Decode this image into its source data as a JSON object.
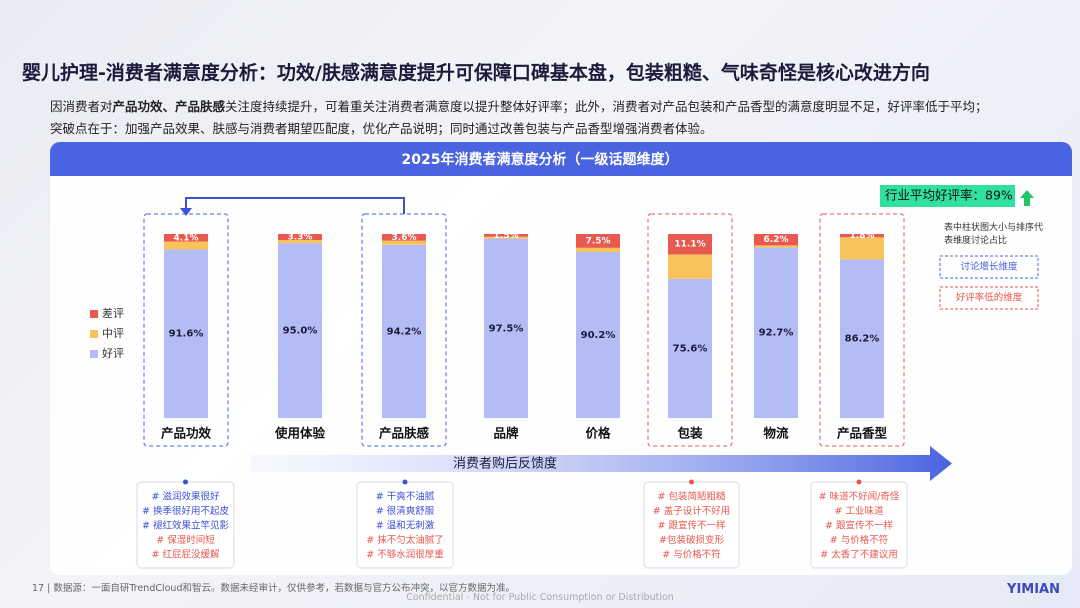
{
  "header": {
    "title": "婴儿护理-消费者满意度分析：功效/肤感满意度提升可保障口碑基本盘，包装粗糙、气味奇怪是核心改进方向",
    "intro_line1": [
      {
        "text": "因消费者对"
      },
      {
        "text": "产品功效、产品肤感",
        "bold": true
      },
      {
        "text": "关注度持续提升，可着重关注消费者满意度以提升整体好评率；此外，消费者对产品包装和产品香型的满意度明显不足，好评率低于平均；"
      }
    ],
    "intro_line2": "突破点在于：加强产品效果、肤感与消费者期望匹配度，优化产品说明；同时通过改善包装与产品香型增强消费者体验。"
  },
  "chart_data": {
    "type": "stacked_bar",
    "title": "2025年消费者满意度分析（一级话题维度）",
    "categories": [
      "产品功效",
      "使用体验",
      "产品肤感",
      "品牌",
      "价格",
      "包装",
      "物流",
      "产品香型"
    ],
    "series": [
      {
        "name": "好评",
        "color": "#b4bcf5",
        "values": [
          91.6,
          95.0,
          94.2,
          97.5,
          90.2,
          75.6,
          92.7,
          86.2
        ],
        "value_labels": [
          "91.6%",
          "95.0%",
          "94.2%",
          "97.5%",
          "90.2%",
          "75.6%",
          "92.7%",
          "86.2%"
        ]
      },
      {
        "name": "中评",
        "color": "#f9c35c",
        "values": [
          4.3,
          1.7,
          2.2,
          1.0,
          2.3,
          13.3,
          1.1,
          12.0
        ]
      },
      {
        "name": "差评",
        "color": "#e85a4f",
        "values": [
          4.1,
          3.3,
          3.6,
          1.5,
          7.5,
          11.1,
          6.2,
          1.8
        ],
        "value_labels": [
          "4.1%",
          "3.3%",
          "3.6%",
          "1.5%",
          "7.5%",
          "11.1%",
          "6.2%",
          "1.8%"
        ]
      }
    ],
    "industry_average": "行业平均好评率：89%",
    "note": "表中柱状图大小与排序代表维度讨论占比",
    "legend_growth": "讨论增长维度",
    "legend_low": "好评率低的维度",
    "flow_label": "消费者购后反馈度"
  },
  "feedback_boxes": [
    {
      "items": [
        {
          "text": "# 滋润效果很好",
          "color": "#3b52d6"
        },
        {
          "text": "# 换季很好用不起皮",
          "color": "#3b52d6"
        },
        {
          "text": "# 褪红效果立竿见影",
          "color": "#3b52d6"
        },
        {
          "text": "# 保湿时间短",
          "color": "#e8584f"
        },
        {
          "text": "# 红屁屁没缓解",
          "color": "#e8584f"
        }
      ]
    },
    {
      "items": [
        {
          "text": "# 干爽不油腻",
          "color": "#3b52d6"
        },
        {
          "text": "# 很清爽舒服",
          "color": "#3b52d6"
        },
        {
          "text": "# 温和无刺激",
          "color": "#3b52d6"
        },
        {
          "text": "# 抹不匀太油腻了",
          "color": "#e8584f"
        },
        {
          "text": "# 不够水润很厚重",
          "color": "#e8584f"
        }
      ]
    },
    {
      "items": [
        {
          "text": "# 包装简陋粗糙",
          "color": "#e8584f"
        },
        {
          "text": "# 盖子设计不好用",
          "color": "#e8584f"
        },
        {
          "text": "# 跟宣传不一样",
          "color": "#e8584f"
        },
        {
          "text": "#包装破损变形",
          "color": "#e8584f"
        },
        {
          "text": "# 与价格不符",
          "color": "#e8584f"
        }
      ]
    },
    {
      "items": [
        {
          "text": "# 味道不好闻/奇怪",
          "color": "#e8584f"
        },
        {
          "text": "# 工业味道",
          "color": "#e8584f"
        },
        {
          "text": "# 跟宣传不一样",
          "color": "#e8584f"
        },
        {
          "text": "# 与价格不符",
          "color": "#e8584f"
        },
        {
          "text": "# 太香了不建议用",
          "color": "#e8584f"
        }
      ]
    }
  ],
  "footer": {
    "page_number": "17",
    "source": "数据源：一面自研TrendCloud和智云。数据未经审计，仅供参考，若数据与官方公布冲突，以官方数据为准。",
    "confidential": "Confidential - Not for Public Consumption or Distribution",
    "logo": "YIMIAN"
  }
}
